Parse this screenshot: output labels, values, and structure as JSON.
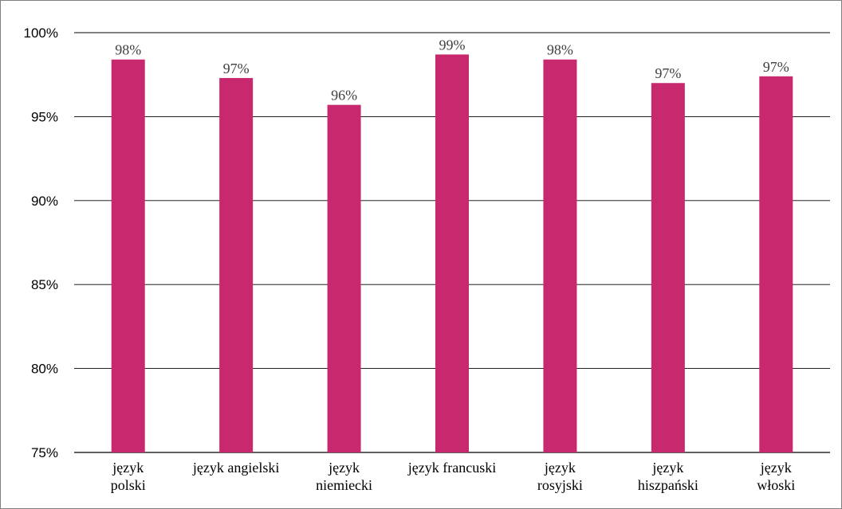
{
  "chart_data": {
    "type": "bar",
    "categories": [
      [
        "język",
        "polski"
      ],
      [
        "język angielski"
      ],
      [
        "język",
        "niemiecki"
      ],
      [
        "język francuski"
      ],
      [
        "język",
        "rosyjski"
      ],
      [
        "język",
        "hiszpański"
      ],
      [
        "język",
        "włoski"
      ]
    ],
    "values": [
      98.4,
      97.3,
      95.7,
      98.7,
      98.4,
      97.0,
      97.4
    ],
    "data_labels": [
      "98%",
      "97%",
      "96%",
      "99%",
      "98%",
      "97%",
      "97%"
    ],
    "ylim": [
      75,
      100
    ],
    "yticks": [
      75,
      80,
      85,
      90,
      95,
      100
    ],
    "ytick_labels": [
      "75%",
      "80%",
      "85%",
      "90%",
      "95%",
      "100%"
    ],
    "title": "",
    "xlabel": "",
    "ylabel": "",
    "grid": true,
    "bar_color": "#C8296E",
    "gridline_color": "#000000"
  }
}
